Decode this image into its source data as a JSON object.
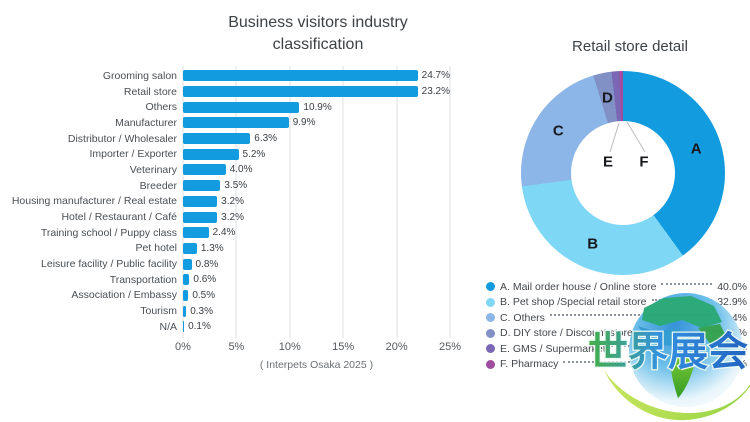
{
  "chart_data": [
    {
      "type": "bar",
      "orientation": "horizontal",
      "title": "Business visitors industry classification",
      "categories": [
        "Grooming salon",
        "Retail store",
        "Others",
        "Manufacturer",
        "Distributor / Wholesaler",
        "Importer / Exporter",
        "Veterinary",
        "Breeder",
        "Housing manufacturer / Real estate",
        "Hotel / Restaurant / Café",
        "Training school / Puppy class",
        "Pet hotel",
        "Leisure facility / Public facility",
        "Transportation",
        "Association / Embassy",
        "Tourism",
        "N/A"
      ],
      "values": [
        24.7,
        23.2,
        10.9,
        9.9,
        6.3,
        5.2,
        4.0,
        3.5,
        3.2,
        3.2,
        2.4,
        1.3,
        0.8,
        0.6,
        0.5,
        0.3,
        0.1
      ],
      "value_labels": [
        "24.7%",
        "23.2%",
        "10.9%",
        "9.9%",
        "6.3%",
        "5.2%",
        "4.0%",
        "3.5%",
        "3.2%",
        "3.2%",
        "2.4%",
        "1.3%",
        "0.8%",
        "0.6%",
        "0.5%",
        "0.3%",
        "0.1%"
      ],
      "xlim": [
        0,
        25
      ],
      "x_ticks": [
        "0%",
        "5%",
        "10%",
        "15%",
        "20%",
        "25%"
      ],
      "grid": "vertical",
      "bar_color": "#129BDF",
      "caption": "( Interpets Osaka 2025 )"
    },
    {
      "type": "pie",
      "subtype": "donut",
      "title": "Retail store detail",
      "start_angle_deg": 0,
      "legend_position": "bottom-right",
      "slices": [
        {
          "letter": "A",
          "label": "A. Mail order house / Online store",
          "value": 40.0,
          "value_label": "40.0%",
          "color": "#129BDF"
        },
        {
          "letter": "B",
          "label": "B. Pet shop /Special retail store",
          "value": 32.9,
          "value_label": "32.9%",
          "color": "#7FD7F6"
        },
        {
          "letter": "C",
          "label": "C. Others",
          "value": 22.4,
          "value_label": "22.4%",
          "color": "#8CB6E8"
        },
        {
          "letter": "D",
          "label": "D. DIY store / Discount store",
          "value": 2.9,
          "value_label": "2.9%",
          "color": "#8191C6"
        },
        {
          "letter": "E",
          "label": "E. GMS / Supermarket",
          "value": 1.2,
          "value_label": "1.2%",
          "color": "#7A67B5"
        },
        {
          "letter": "F",
          "label": "F. Pharmacy",
          "value": 0.6,
          "value_label": "0.6%",
          "color": "#A04C9F"
        }
      ]
    }
  ],
  "watermark": {
    "text": "世界展会"
  }
}
